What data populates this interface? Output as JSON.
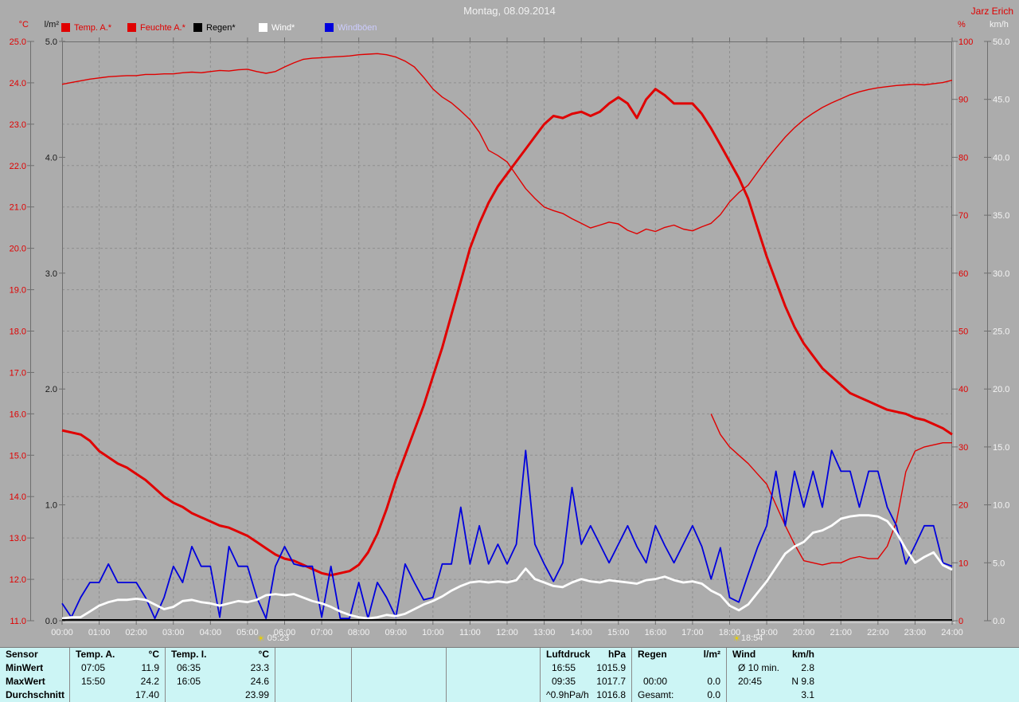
{
  "header": {
    "title": "Montag, 08.09.2014",
    "station": "Jarz Erich"
  },
  "legend": [
    {
      "label": "Temp. A.*",
      "swatch": "#e00000",
      "label_color": "#e00000"
    },
    {
      "label": "Feuchte A.*",
      "swatch": "#e00000",
      "label_color": "#e00000"
    },
    {
      "label": "Regen*",
      "swatch": "#000000",
      "label_color": "#000000"
    },
    {
      "label": "Wind*",
      "swatch": "#ffffff",
      "label_color": "#ffffff"
    },
    {
      "label": "Windböen",
      "swatch": "#0000dd",
      "label_color": "#ccccff"
    }
  ],
  "markers": {
    "sunrise": {
      "time": "05:23",
      "hours": 5.383
    },
    "sunset": {
      "time": "18:54",
      "hours": 18.9
    }
  },
  "chart_data": {
    "type": "line",
    "title": "Montag, 08.09.2014",
    "grid": true,
    "x_axis": {
      "label_unit": "hh:mm",
      "range_hours": [
        0,
        24
      ],
      "tick_labels": [
        "00:00",
        "01:00",
        "02:00",
        "03:00",
        "04:00",
        "05:00",
        "06:00",
        "07:00",
        "08:00",
        "09:00",
        "10:00",
        "11:00",
        "12:00",
        "13:00",
        "14:00",
        "15:00",
        "16:00",
        "17:00",
        "18:00",
        "19:00",
        "20:00",
        "21:00",
        "22:00",
        "23:00",
        "24:00"
      ]
    },
    "y_axes": {
      "temp": {
        "unit": "°C",
        "min": 11,
        "max": 25,
        "step": 1,
        "color": "#e00000",
        "tick_labels": [
          "25.0",
          "24.0",
          "23.0",
          "22.0",
          "21.0",
          "20.0",
          "19.0",
          "18.0",
          "17.0",
          "16.0",
          "15.0",
          "14.0",
          "13.0",
          "12.0",
          "11.0"
        ]
      },
      "rain": {
        "unit": "l/m²",
        "min": 0,
        "max": 5,
        "step": 1,
        "color": "#111111",
        "tick_labels": [
          "5.0",
          "4.0",
          "3.0",
          "2.0",
          "1.0",
          "0.0"
        ]
      },
      "hum": {
        "unit": "%",
        "min": 0,
        "max": 100,
        "step": 10,
        "color": "#e00000",
        "tick_labels": [
          "100",
          "90",
          "80",
          "70",
          "60",
          "50",
          "40",
          "30",
          "20",
          "10",
          "0"
        ]
      },
      "wind": {
        "unit": "km/h",
        "min": 0,
        "max": 50,
        "step": 5,
        "color": "#f5f5f5",
        "tick_labels": [
          "50.0",
          "45.0",
          "40.0",
          "35.0",
          "30.0",
          "25.0",
          "20.0",
          "15.0",
          "10.0",
          "5.0",
          "0.0"
        ]
      }
    },
    "x_step_hours": 0.25,
    "series": [
      {
        "key": "temp_a",
        "name": "Temp. A.",
        "axis": "temp",
        "color": "#e00000",
        "width": 3,
        "values": [
          15.6,
          15.55,
          15.5,
          15.35,
          15.1,
          14.95,
          14.8,
          14.7,
          14.55,
          14.4,
          14.2,
          14.0,
          13.85,
          13.75,
          13.6,
          13.5,
          13.4,
          13.3,
          13.25,
          13.15,
          13.05,
          12.9,
          12.75,
          12.6,
          12.5,
          12.45,
          12.35,
          12.25,
          12.15,
          12.1,
          12.15,
          12.2,
          12.35,
          12.65,
          13.1,
          13.7,
          14.4,
          15.0,
          15.6,
          16.2,
          16.9,
          17.6,
          18.4,
          19.2,
          20.0,
          20.6,
          21.1,
          21.5,
          21.8,
          22.1,
          22.4,
          22.7,
          23.0,
          23.2,
          23.15,
          23.25,
          23.3,
          23.2,
          23.3,
          23.5,
          23.65,
          23.5,
          23.15,
          23.6,
          23.85,
          23.7,
          23.5,
          23.5,
          23.5,
          23.25,
          22.9,
          22.5,
          22.1,
          21.7,
          21.2,
          20.5,
          19.8,
          19.2,
          18.6,
          18.1,
          17.7,
          17.4,
          17.1,
          16.9,
          16.7,
          16.5,
          16.4,
          16.3,
          16.2,
          16.1,
          16.05,
          16.0,
          15.9,
          15.85,
          15.75,
          15.65,
          15.5
        ]
      },
      {
        "key": "feuchte_a",
        "name": "Feuchte A.",
        "axis": "hum",
        "color": "#e00000",
        "width": 1.4,
        "values": [
          92.6,
          92.9,
          93.2,
          93.5,
          93.7,
          93.9,
          94.0,
          94.1,
          94.1,
          94.3,
          94.3,
          94.4,
          94.4,
          94.6,
          94.7,
          94.6,
          94.8,
          95.0,
          94.9,
          95.1,
          95.2,
          94.8,
          94.5,
          94.8,
          95.6,
          96.3,
          96.9,
          97.1,
          97.2,
          97.3,
          97.4,
          97.5,
          97.7,
          97.8,
          97.9,
          97.7,
          97.3,
          96.6,
          95.6,
          93.8,
          91.8,
          90.4,
          89.4,
          88.0,
          86.5,
          84.3,
          81.2,
          80.3,
          79.2,
          76.9,
          74.6,
          72.9,
          71.4,
          70.8,
          70.3,
          69.4,
          68.6,
          67.8,
          68.3,
          68.8,
          68.5,
          67.4,
          66.8,
          67.6,
          67.2,
          67.9,
          68.3,
          67.6,
          67.3,
          68.0,
          68.6,
          70.1,
          72.3,
          73.9,
          75.2,
          77.4,
          79.6,
          81.6,
          83.5,
          85.1,
          86.5,
          87.6,
          88.6,
          89.4,
          90.1,
          90.8,
          91.3,
          91.7,
          92.0,
          92.2,
          92.4,
          92.5,
          92.6,
          92.5,
          92.7,
          92.9,
          93.3
        ]
      },
      {
        "key": "regen",
        "name": "Regen",
        "axis": "rain",
        "color": "#000000",
        "width": 2,
        "constant_value": 0.0
      },
      {
        "key": "wind",
        "name": "Wind",
        "axis": "wind",
        "color": "#ffffff",
        "width": 2.8,
        "values": [
          0.2,
          0.3,
          0.3,
          0.8,
          1.3,
          1.6,
          1.8,
          1.8,
          1.9,
          1.8,
          1.4,
          1.0,
          1.2,
          1.7,
          1.8,
          1.6,
          1.5,
          1.3,
          1.5,
          1.7,
          1.6,
          1.8,
          2.2,
          2.3,
          2.2,
          2.3,
          2.0,
          1.7,
          1.5,
          1.2,
          0.8,
          0.5,
          0.3,
          0.2,
          0.3,
          0.5,
          0.4,
          0.6,
          1.0,
          1.4,
          1.7,
          2.1,
          2.6,
          3.0,
          3.3,
          3.4,
          3.3,
          3.4,
          3.3,
          3.5,
          4.5,
          3.6,
          3.3,
          3.0,
          2.9,
          3.3,
          3.6,
          3.4,
          3.3,
          3.5,
          3.4,
          3.3,
          3.2,
          3.5,
          3.6,
          3.8,
          3.5,
          3.3,
          3.4,
          3.2,
          2.6,
          2.2,
          1.3,
          0.9,
          1.4,
          2.4,
          3.4,
          4.6,
          5.8,
          6.4,
          6.8,
          7.6,
          7.8,
          8.2,
          8.8,
          9.0,
          9.1,
          9.1,
          9.0,
          8.6,
          7.6,
          6.2,
          5.0,
          5.5,
          5.9,
          4.8,
          4.4
        ]
      },
      {
        "key": "windboeen",
        "name": "Windböen",
        "axis": "wind",
        "color": "#0000dd",
        "width": 1.8,
        "values": [
          1.5,
          0.3,
          2.0,
          3.3,
          3.3,
          4.9,
          3.3,
          3.3,
          3.3,
          2.0,
          0.2,
          2.0,
          4.7,
          3.3,
          6.4,
          4.7,
          4.7,
          0.3,
          6.4,
          4.7,
          4.7,
          2.0,
          0.2,
          4.7,
          6.4,
          4.9,
          4.7,
          4.7,
          0.3,
          4.7,
          0.2,
          0.2,
          3.3,
          0.2,
          3.3,
          2.0,
          0.3,
          4.9,
          3.3,
          1.8,
          2.0,
          4.9,
          4.9,
          9.8,
          4.9,
          8.2,
          4.9,
          6.6,
          4.9,
          6.6,
          14.7,
          6.6,
          4.9,
          3.4,
          5.0,
          11.5,
          6.6,
          8.2,
          6.6,
          5.0,
          6.6,
          8.2,
          6.4,
          5.0,
          8.2,
          6.5,
          5.0,
          6.6,
          8.2,
          6.4,
          3.6,
          6.3,
          2.0,
          1.6,
          4.0,
          6.3,
          8.2,
          12.9,
          8.2,
          12.9,
          9.8,
          12.9,
          9.8,
          14.7,
          12.9,
          12.9,
          9.8,
          12.9,
          12.9,
          9.8,
          8.2,
          4.9,
          6.5,
          8.2,
          8.2,
          5.0,
          4.7
        ]
      },
      {
        "key": "unlabeled_red_trace",
        "name": "",
        "axis": "temp",
        "color": "#e00000",
        "width": 1.4,
        "x_start_hours": 17.5,
        "values": [
          16.0,
          15.5,
          15.2,
          15.0,
          14.8,
          14.55,
          14.3,
          13.8,
          13.3,
          12.85,
          12.45,
          12.4,
          12.35,
          12.4,
          12.4,
          12.5,
          12.55,
          12.5,
          12.5,
          12.8,
          13.4,
          14.6,
          15.1,
          15.2,
          15.25,
          15.3,
          15.3
        ]
      }
    ]
  },
  "table": {
    "row_labels": [
      "Sensor",
      "MinWert",
      "MaxWert",
      "Durchschnitt"
    ],
    "columns": [
      {
        "header": "Temp. A.",
        "unit": "°C",
        "min": [
          "07:05",
          "11.9"
        ],
        "max": [
          "15:50",
          "24.2"
        ],
        "avg": [
          "",
          "17.40"
        ]
      },
      {
        "header": "Temp. I.",
        "unit": "°C",
        "min": [
          "06:35",
          "23.3"
        ],
        "max": [
          "16:05",
          "24.6"
        ],
        "avg": [
          "",
          "23.99"
        ]
      },
      {
        "header": "",
        "unit": "",
        "min": [
          "",
          ""
        ],
        "max": [
          "",
          ""
        ],
        "avg": [
          "",
          ""
        ]
      },
      {
        "header": "",
        "unit": "",
        "min": [
          "",
          ""
        ],
        "max": [
          "",
          ""
        ],
        "avg": [
          "",
          ""
        ]
      },
      {
        "header": "",
        "unit": "",
        "min": [
          "",
          ""
        ],
        "max": [
          "",
          ""
        ],
        "avg": [
          "",
          ""
        ]
      },
      {
        "header": "Luftdruck",
        "unit": "hPa",
        "min": [
          "16:55",
          "1015.9"
        ],
        "max": [
          "09:35",
          "1017.7"
        ],
        "avg": [
          "^0.9hPa/h",
          "1016.8"
        ]
      },
      {
        "header": "Regen",
        "unit": "l/m²",
        "min": [
          "",
          ""
        ],
        "max": [
          "00:00",
          "0.0"
        ],
        "avg": [
          "Gesamt:",
          "0.0"
        ]
      },
      {
        "header": "Wind",
        "unit": "km/h",
        "min": [
          "Ø 10 min.",
          "2.8"
        ],
        "max": [
          "20:45",
          "N 9.8"
        ],
        "avg": [
          "",
          "3.1"
        ]
      }
    ]
  }
}
